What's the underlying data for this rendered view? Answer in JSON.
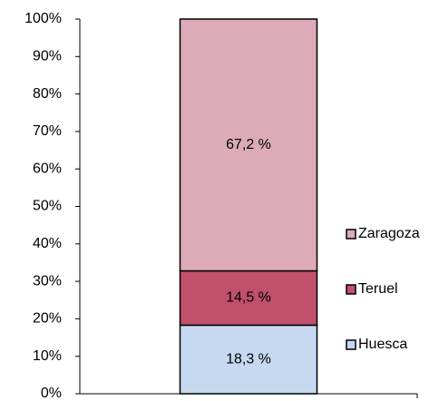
{
  "chart_data": {
    "type": "stacked_bar",
    "categories": [
      null
    ],
    "series": [
      {
        "name": "Huesca",
        "color": "#c6d9f1",
        "values": [
          18.3
        ],
        "value_labels": [
          "18,3 %"
        ]
      },
      {
        "name": "Teruel",
        "color": "#c0506c",
        "values": [
          14.5
        ],
        "value_labels": [
          "14,5 %"
        ]
      },
      {
        "name": "Zaragoza",
        "color": "#dcaab9",
        "values": [
          67.2
        ],
        "value_labels": [
          "67,2 %"
        ]
      }
    ],
    "ylim": [
      0,
      100
    ],
    "yticks": [
      {
        "value": 0,
        "label": "0%"
      },
      {
        "value": 10,
        "label": "10%"
      },
      {
        "value": 20,
        "label": "20%"
      },
      {
        "value": 30,
        "label": "30%"
      },
      {
        "value": 40,
        "label": "40%"
      },
      {
        "value": 50,
        "label": "50%"
      },
      {
        "value": 60,
        "label": "60%"
      },
      {
        "value": 70,
        "label": "70%"
      },
      {
        "value": 80,
        "label": "80%"
      },
      {
        "value": 90,
        "label": "90%"
      },
      {
        "value": 100,
        "label": "100%"
      }
    ],
    "legend": "right"
  }
}
